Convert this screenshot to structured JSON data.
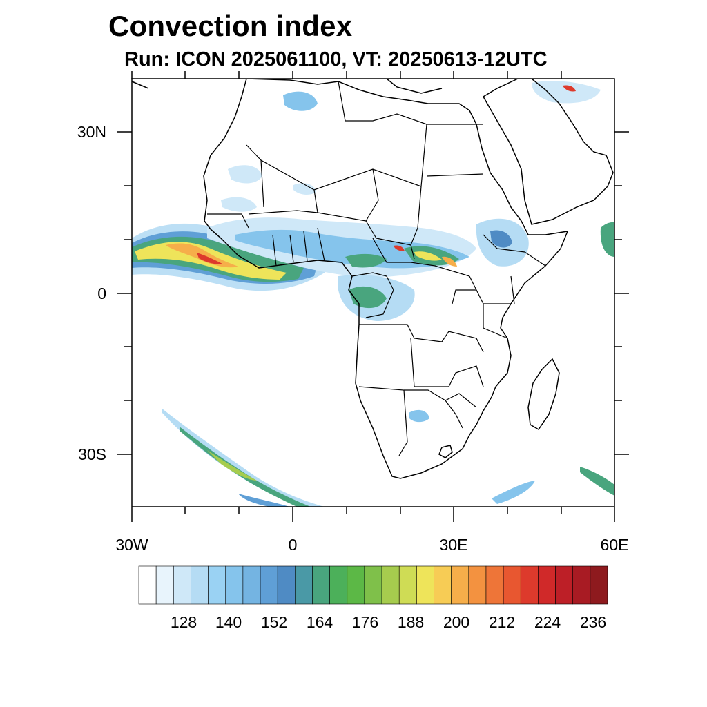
{
  "title": "Convection index",
  "subtitle": "Run: ICON 2025061100,  VT: 20250613-12UTC",
  "y_axis_labels": [
    "30N",
    "0",
    "30S"
  ],
  "x_axis_labels": [
    "30W",
    "0",
    "30E",
    "60E"
  ],
  "colorbar": {
    "tick_labels": [
      "128",
      "140",
      "152",
      "164",
      "176",
      "188",
      "200",
      "212",
      "224",
      "236"
    ],
    "colors": [
      "#ffffff",
      "#e8f4fc",
      "#cfe8f8",
      "#b5dcf4",
      "#9ad2f3",
      "#85c4ec",
      "#74b4e2",
      "#5f9fd6",
      "#4f8bc4",
      "#4a99a6",
      "#49a57e",
      "#4cb05a",
      "#5cb846",
      "#7fc04a",
      "#a6cc4e",
      "#cfdc55",
      "#eee45a",
      "#f7cc55",
      "#f6ae4a",
      "#f39240",
      "#ee7538",
      "#e85730",
      "#dd3a2c",
      "#d02929",
      "#bd1f27",
      "#a81b23",
      "#8e1a1e"
    ]
  },
  "map": {
    "projection": "cylindrical equidistant",
    "lon_range": [
      -30,
      60
    ],
    "lat_range": [
      -40,
      40
    ],
    "field": "convection index",
    "colors": {
      "coastline": "#000000",
      "light_blue": "#9ad2f3",
      "mid_blue": "#5f9fd6",
      "green": "#49a57e",
      "yellow": "#eee45a",
      "orange": "#f6ae4a",
      "red": "#dd3a2c"
    }
  }
}
